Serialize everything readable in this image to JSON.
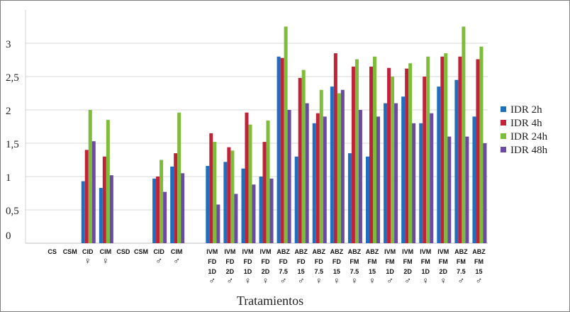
{
  "chart_data": {
    "type": "bar",
    "title": "",
    "xlabel": "Tratamientos",
    "ylabel": "",
    "ylim": [
      0,
      3.5
    ],
    "yticks": [
      "0",
      "0,5",
      "1",
      "1,5",
      "2",
      "2,5",
      "3"
    ],
    "grid": true,
    "legend_position": "right",
    "categories": [
      [
        "",
        ""
      ],
      [
        "CS"
      ],
      [
        "CSM"
      ],
      [
        "CID",
        "♀"
      ],
      [
        "CIM",
        "♀"
      ],
      [
        "CSD"
      ],
      [
        "CSM"
      ],
      [
        "CID",
        "♂"
      ],
      [
        "CIM",
        "♂"
      ],
      [
        ""
      ],
      [
        "IVM",
        "FD",
        "1D",
        "♂"
      ],
      [
        "IVM",
        "FD",
        "2D",
        "♂"
      ],
      [
        "IVM",
        "FD",
        "1D",
        "♀"
      ],
      [
        "IVM",
        "FD",
        "2D",
        "♀"
      ],
      [
        "ABZ",
        "FD",
        "7.5",
        "♂"
      ],
      [
        "ABZ",
        "FD",
        "15",
        "♂"
      ],
      [
        "ABZ",
        "FD",
        "7.5",
        "♀"
      ],
      [
        "ABZ",
        "FD",
        "15",
        "♀"
      ],
      [
        "ABZ",
        "FM",
        "7.5",
        "♀"
      ],
      [
        "ABZ",
        "FM",
        "15",
        "♀"
      ],
      [
        "IVM",
        "FM",
        "1D",
        "♂"
      ],
      [
        "IVM",
        "FM",
        "2D",
        "♂"
      ],
      [
        "IVM",
        "FM",
        "1D",
        "♀"
      ],
      [
        "IVM",
        "FM",
        "2D",
        "♀"
      ],
      [
        "ABZ",
        "FM",
        "7.5",
        "♂"
      ],
      [
        "ABZ",
        "FM",
        "15",
        "♂"
      ]
    ],
    "series": [
      {
        "name": "IDR 2h",
        "color": "#1f6fc1",
        "values": [
          0,
          0,
          0,
          0.93,
          0.83,
          0,
          0,
          0.97,
          1.15,
          0,
          1.16,
          1.22,
          1.12,
          1.0,
          2.8,
          1.3,
          1.8,
          2.35,
          1.35,
          1.3,
          2.1,
          2.2,
          1.8,
          2.35,
          2.45,
          1.9
        ]
      },
      {
        "name": "IDR 4h",
        "color": "#c0223a",
        "values": [
          0,
          0,
          0,
          1.4,
          1.3,
          0,
          0,
          1.0,
          1.35,
          0,
          1.65,
          1.44,
          1.96,
          1.52,
          2.78,
          2.48,
          1.95,
          2.85,
          2.65,
          2.65,
          2.63,
          2.62,
          2.5,
          2.8,
          2.8,
          2.76
        ]
      },
      {
        "name": "IDR 24h",
        "color": "#7ebd3a",
        "values": [
          0,
          0,
          0,
          2.0,
          1.85,
          0,
          0,
          1.25,
          1.96,
          0,
          1.52,
          1.39,
          1.78,
          1.84,
          3.25,
          2.6,
          2.3,
          2.25,
          2.76,
          2.8,
          2.5,
          2.7,
          2.8,
          2.85,
          3.25,
          2.95
        ]
      },
      {
        "name": "IDR 48h",
        "color": "#6a4aa2",
        "values": [
          0,
          0,
          0,
          1.53,
          1.02,
          0,
          0,
          0.77,
          1.05,
          0,
          0.58,
          0.74,
          0.88,
          0.97,
          2.0,
          2.1,
          1.9,
          2.3,
          2.0,
          1.9,
          2.1,
          1.8,
          1.95,
          1.6,
          1.6,
          1.5
        ]
      }
    ]
  }
}
